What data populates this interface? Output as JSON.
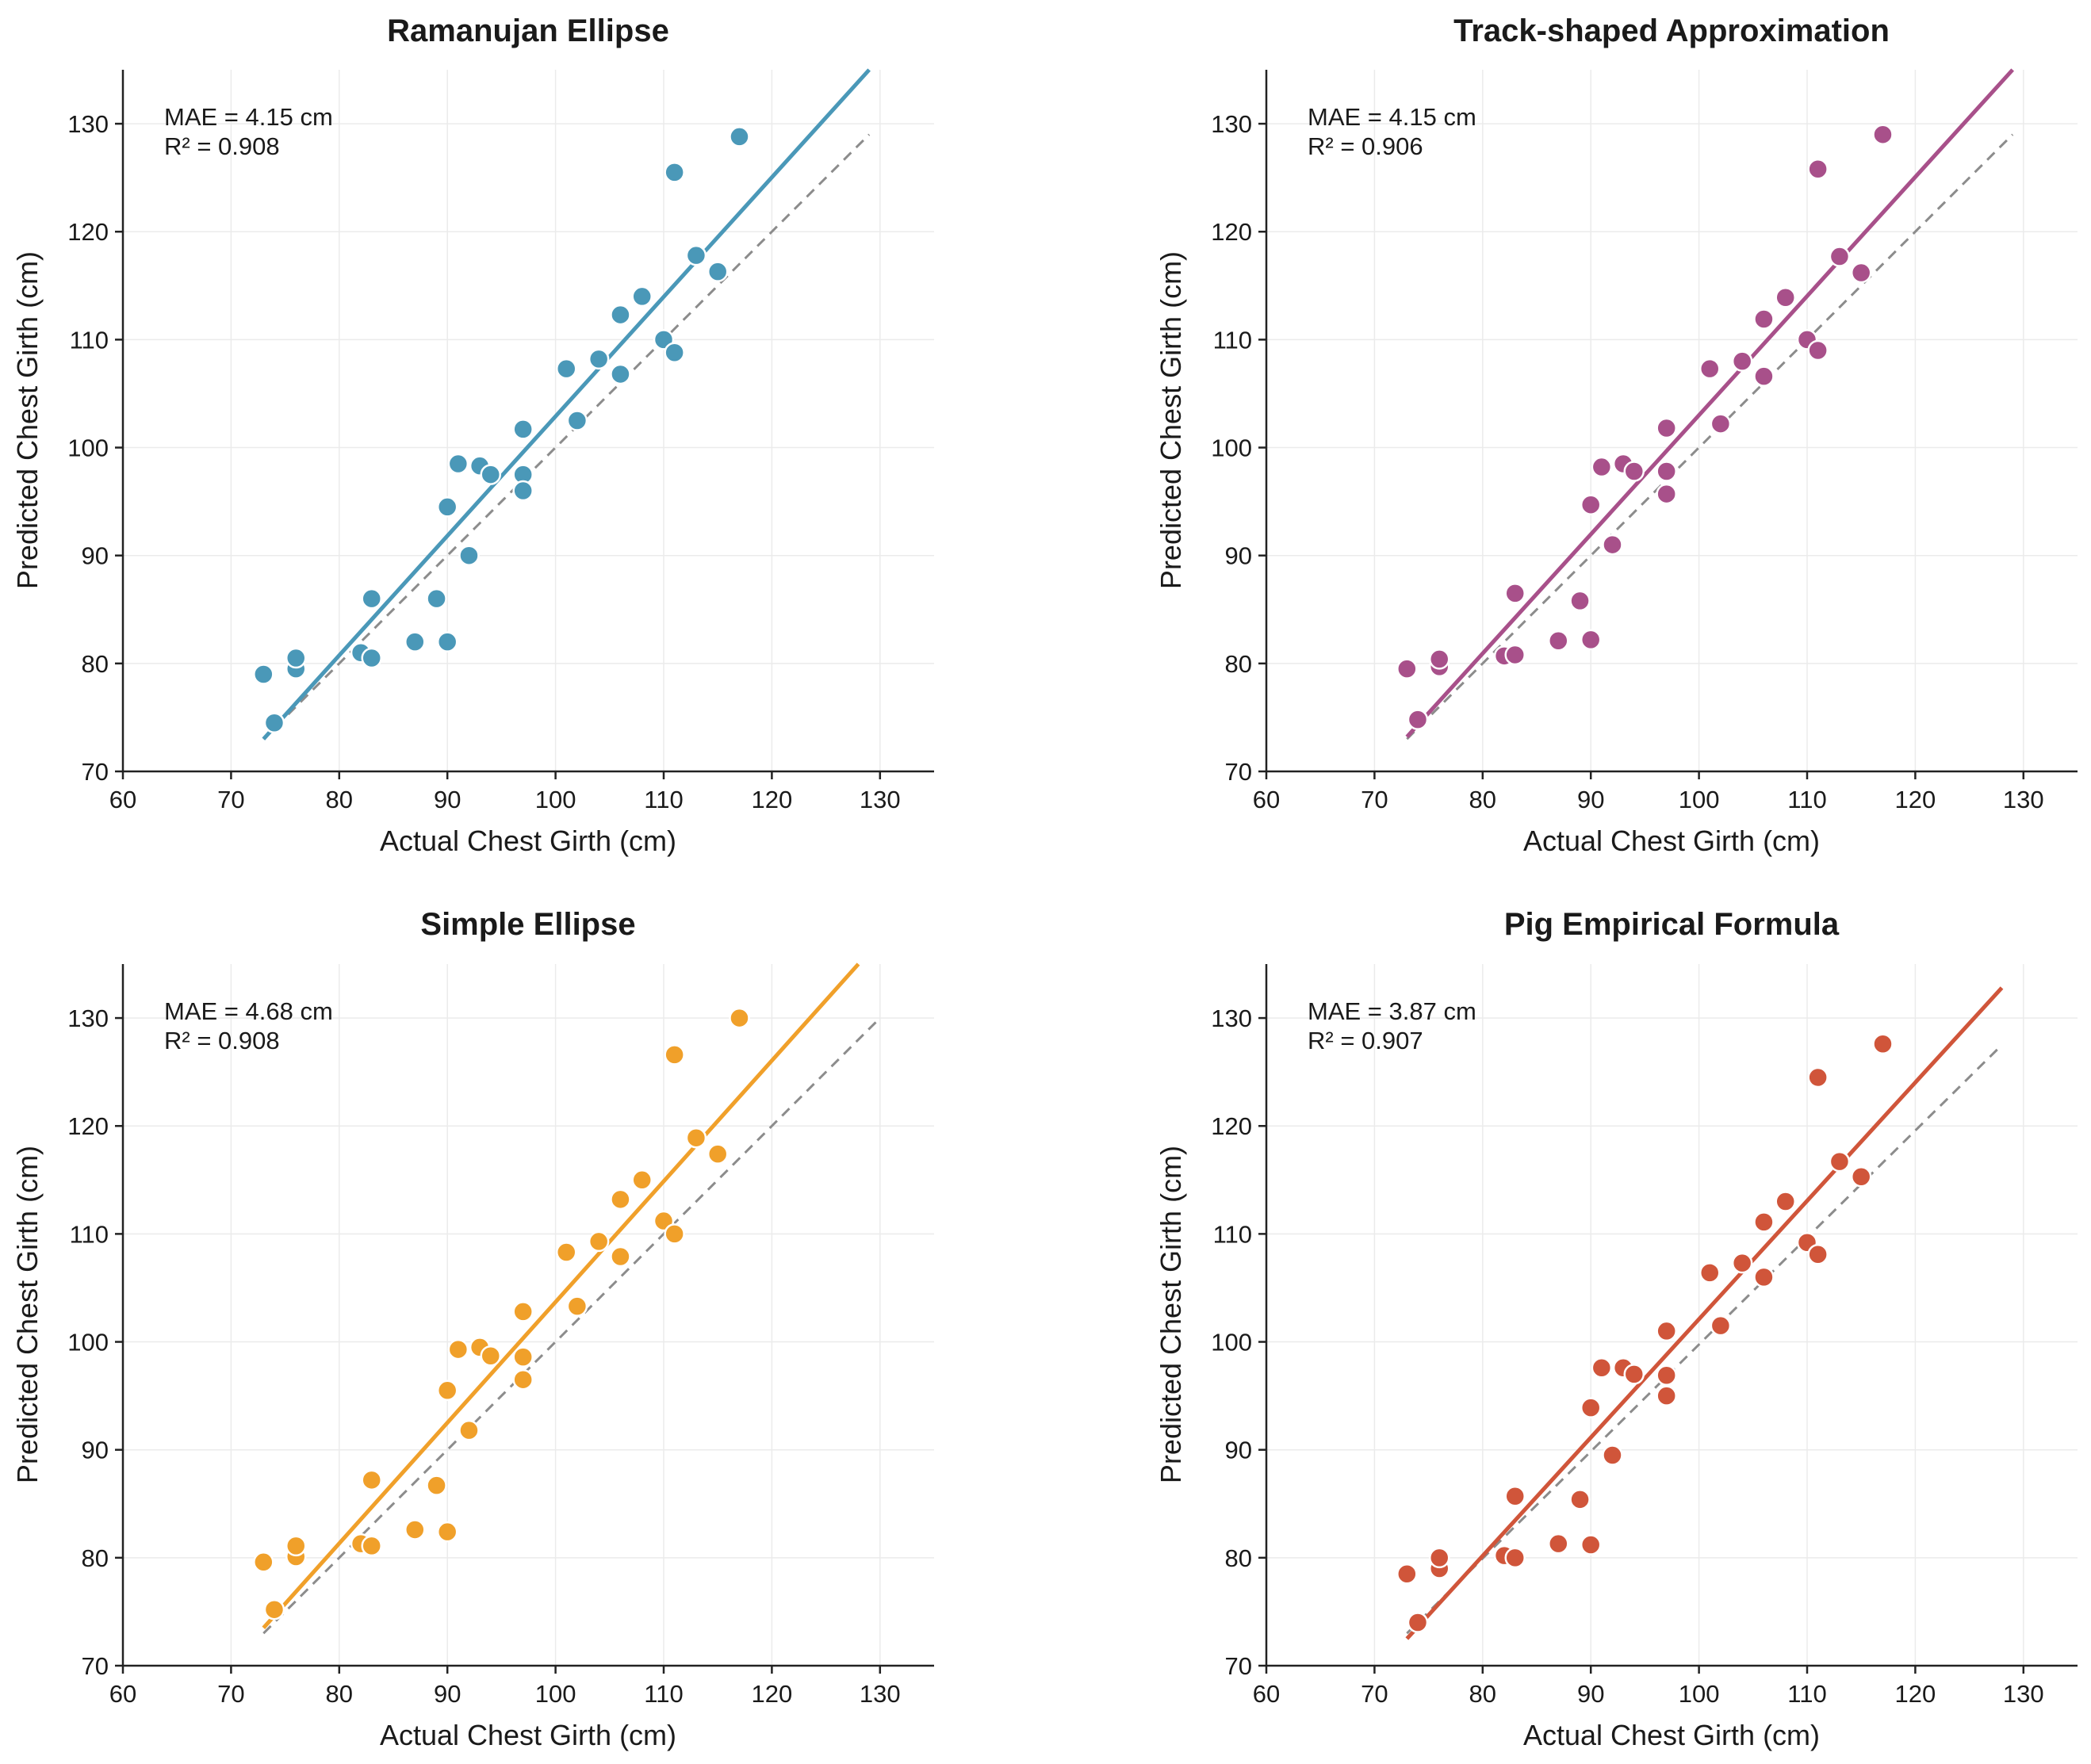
{
  "chart_data": [
    {
      "type": "scatter",
      "title": "Ramanujan Ellipse",
      "xlabel": "Actual Chest Girth (cm)",
      "ylabel": "Predicted Chest Girth (cm)",
      "xlim": [
        60,
        135
      ],
      "ylim": [
        70,
        135
      ],
      "xticks": [
        60,
        70,
        80,
        90,
        100,
        110,
        120,
        130
      ],
      "yticks": [
        70,
        80,
        90,
        100,
        110,
        120,
        130
      ],
      "grid": true,
      "color": "#4a98b8",
      "stats": [
        "MAE = 4.15 cm",
        "R² = 0.908"
      ],
      "fit_line": {
        "x": [
          73,
          129
        ],
        "y": [
          73,
          135
        ]
      },
      "identity_line": {
        "x": [
          73,
          129
        ],
        "y": [
          73,
          129
        ]
      },
      "points": {
        "x": [
          73,
          74,
          76,
          76,
          82,
          83,
          83,
          87,
          89,
          90,
          90,
          91,
          92,
          93,
          94,
          97,
          97,
          97,
          101,
          102,
          104,
          106,
          106,
          108,
          110,
          111,
          111,
          113,
          115,
          117
        ],
        "y": [
          79,
          74.5,
          79.5,
          80.5,
          81,
          80.5,
          86,
          82,
          86,
          94.5,
          82,
          98.5,
          90,
          98.3,
          97.5,
          101.7,
          97.5,
          96,
          107.3,
          102.5,
          108.2,
          112.3,
          106.8,
          114,
          110,
          125.5,
          108.8,
          117.8,
          116.3,
          128.8
        ]
      }
    },
    {
      "type": "scatter",
      "title": "Track-shaped Approximation",
      "xlabel": "Actual Chest Girth (cm)",
      "ylabel": "Predicted Chest Girth (cm)",
      "xlim": [
        60,
        135
      ],
      "ylim": [
        70,
        135
      ],
      "xticks": [
        60,
        70,
        80,
        90,
        100,
        110,
        120,
        130
      ],
      "yticks": [
        70,
        80,
        90,
        100,
        110,
        120,
        130
      ],
      "grid": true,
      "color": "#a8508a",
      "stats": [
        "MAE = 4.15 cm",
        "R² = 0.906"
      ],
      "fit_line": {
        "x": [
          73,
          129
        ],
        "y": [
          73.2,
          135
        ]
      },
      "identity_line": {
        "x": [
          73,
          129
        ],
        "y": [
          73,
          129
        ]
      },
      "points": {
        "x": [
          73,
          74,
          76,
          76,
          82,
          83,
          83,
          87,
          89,
          90,
          90,
          91,
          92,
          93,
          94,
          97,
          97,
          97,
          101,
          102,
          104,
          106,
          106,
          108,
          110,
          111,
          111,
          113,
          115,
          117
        ],
        "y": [
          79.5,
          74.8,
          79.7,
          80.4,
          80.7,
          80.8,
          86.5,
          82.1,
          85.8,
          94.7,
          82.2,
          98.2,
          91,
          98.5,
          97.8,
          101.8,
          97.8,
          95.7,
          107.3,
          102.2,
          108,
          111.9,
          106.6,
          113.9,
          110,
          125.8,
          109,
          117.7,
          116.2,
          129
        ]
      }
    },
    {
      "type": "scatter",
      "title": "Simple Ellipse",
      "xlabel": "Actual Chest Girth (cm)",
      "ylabel": "Predicted Chest Girth (cm)",
      "xlim": [
        60,
        135
      ],
      "ylim": [
        70,
        135
      ],
      "xticks": [
        60,
        70,
        80,
        90,
        100,
        110,
        120,
        130
      ],
      "yticks": [
        70,
        80,
        90,
        100,
        110,
        120,
        130
      ],
      "grid": true,
      "color": "#f0a02a",
      "stats": [
        "MAE = 4.68 cm",
        "R² = 0.908"
      ],
      "fit_line": {
        "x": [
          73,
          128
        ],
        "y": [
          73.5,
          135
        ]
      },
      "identity_line": {
        "x": [
          73,
          130
        ],
        "y": [
          73,
          130
        ]
      },
      "points": {
        "x": [
          73,
          74,
          76,
          76,
          82,
          83,
          83,
          87,
          89,
          90,
          90,
          91,
          92,
          93,
          94,
          97,
          97,
          97,
          101,
          102,
          104,
          106,
          106,
          108,
          110,
          111,
          111,
          113,
          115,
          117
        ],
        "y": [
          79.6,
          75.2,
          80.1,
          81.1,
          81.3,
          81.1,
          87.2,
          82.6,
          86.7,
          95.5,
          82.4,
          99.3,
          91.8,
          99.5,
          98.7,
          102.8,
          98.6,
          96.5,
          108.3,
          103.3,
          109.3,
          113.2,
          107.9,
          115,
          111.2,
          126.6,
          110,
          118.9,
          117.4,
          130
        ]
      }
    },
    {
      "type": "scatter",
      "title": "Pig Empirical Formula",
      "xlabel": "Actual Chest Girth (cm)",
      "ylabel": "Predicted Chest Girth (cm)",
      "xlim": [
        60,
        135
      ],
      "ylim": [
        70,
        135
      ],
      "xticks": [
        60,
        70,
        80,
        90,
        100,
        110,
        120,
        130
      ],
      "yticks": [
        70,
        80,
        90,
        100,
        110,
        120,
        130
      ],
      "grid": true,
      "color": "#d0553a",
      "stats": [
        "MAE = 3.87 cm",
        "R² = 0.907"
      ],
      "fit_line": {
        "x": [
          73,
          128
        ],
        "y": [
          72.5,
          132.8
        ]
      },
      "identity_line": {
        "x": [
          73,
          128
        ],
        "y": [
          73,
          127.5
        ]
      },
      "points": {
        "x": [
          73,
          74,
          76,
          76,
          82,
          83,
          83,
          87,
          89,
          90,
          90,
          91,
          92,
          93,
          94,
          97,
          97,
          97,
          101,
          102,
          104,
          106,
          106,
          108,
          110,
          111,
          111,
          113,
          115,
          117
        ],
        "y": [
          78.5,
          74,
          79,
          80,
          80.2,
          80,
          85.7,
          81.3,
          85.4,
          93.9,
          81.2,
          97.6,
          89.5,
          97.6,
          97,
          101,
          96.9,
          95,
          106.4,
          101.5,
          107.3,
          111.1,
          106,
          113,
          109.2,
          124.5,
          108.1,
          116.7,
          115.3,
          127.6
        ]
      }
    }
  ]
}
